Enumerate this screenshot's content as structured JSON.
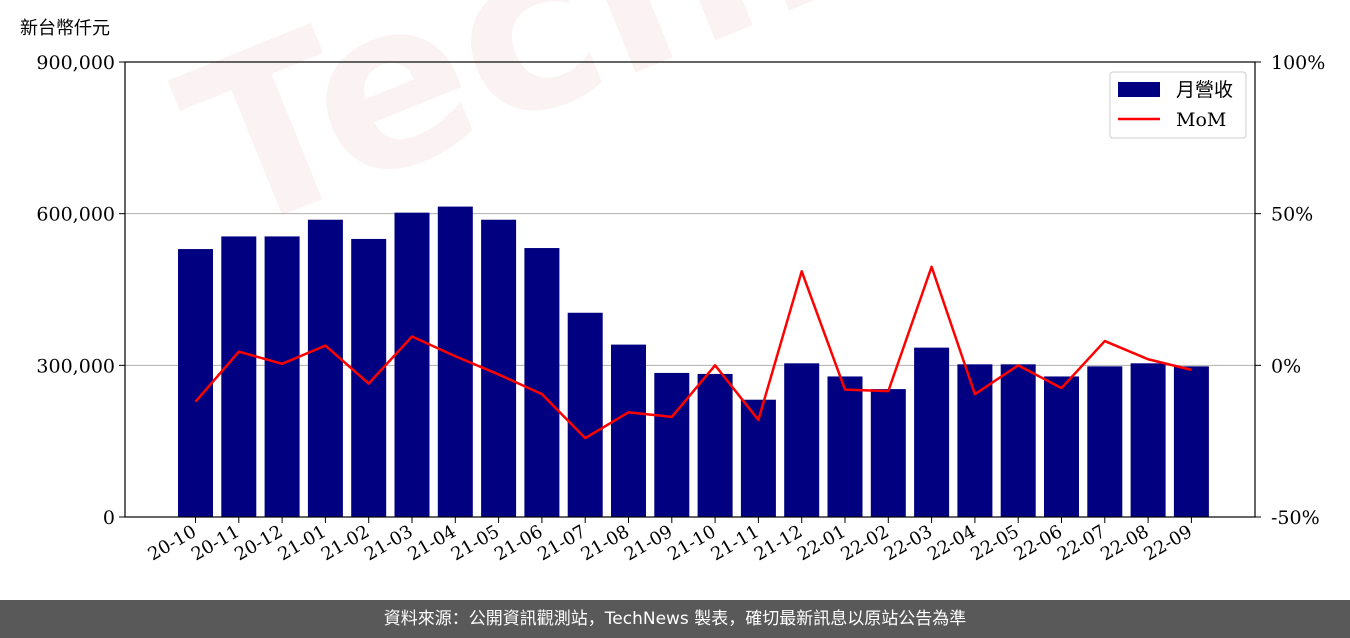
{
  "unit_label": "新台幣仟元",
  "footer_text": "資料來源：公開資訊觀測站，TechNews 製表，確切最新訊息以原站公告為準",
  "watermark_text": "TechNews",
  "colors": {
    "bar": "#000080",
    "line": "#ff0000",
    "footer_bg": "#595959"
  },
  "chart_data": {
    "type": "bar",
    "categories": [
      "20-10",
      "20-11",
      "20-12",
      "21-01",
      "21-02",
      "21-03",
      "21-04",
      "21-05",
      "21-06",
      "21-07",
      "21-08",
      "21-09",
      "21-10",
      "21-11",
      "21-12",
      "22-01",
      "22-02",
      "22-03",
      "22-04",
      "22-05",
      "22-06",
      "22-07",
      "22-08",
      "22-09"
    ],
    "series": [
      {
        "name": "月營收",
        "type": "bar",
        "axis": "left",
        "values": [
          530000,
          555000,
          555000,
          588000,
          550000,
          602000,
          614000,
          588000,
          532000,
          404000,
          341000,
          285000,
          283000,
          232000,
          304000,
          278000,
          253000,
          335000,
          302000,
          302000,
          278000,
          298000,
          304000,
          298000
        ]
      },
      {
        "name": "MoM",
        "type": "line",
        "axis": "right",
        "values": [
          -12,
          4.5,
          0.5,
          6.5,
          -6,
          9.5,
          3,
          -3,
          -9.5,
          -24,
          -15.5,
          -17,
          0,
          -18,
          31,
          -8,
          -8.5,
          32.5,
          -9.5,
          0,
          -7.5,
          8,
          2,
          -1.5
        ]
      }
    ],
    "y_left": {
      "ylim": [
        0,
        900000
      ],
      "ticks": [
        "0",
        "300,000",
        "600,000",
        "900,000"
      ],
      "tick_values": [
        0,
        300000,
        600000,
        900000
      ]
    },
    "y_right": {
      "ylim": [
        -50,
        100
      ],
      "ticks": [
        "-50%",
        "0%",
        "50%",
        "100%"
      ],
      "tick_values": [
        -50,
        0,
        50,
        100
      ]
    },
    "grid": "horizontal",
    "legend": {
      "placement": "top-right",
      "entries": [
        "月營收",
        "MoM"
      ]
    }
  }
}
